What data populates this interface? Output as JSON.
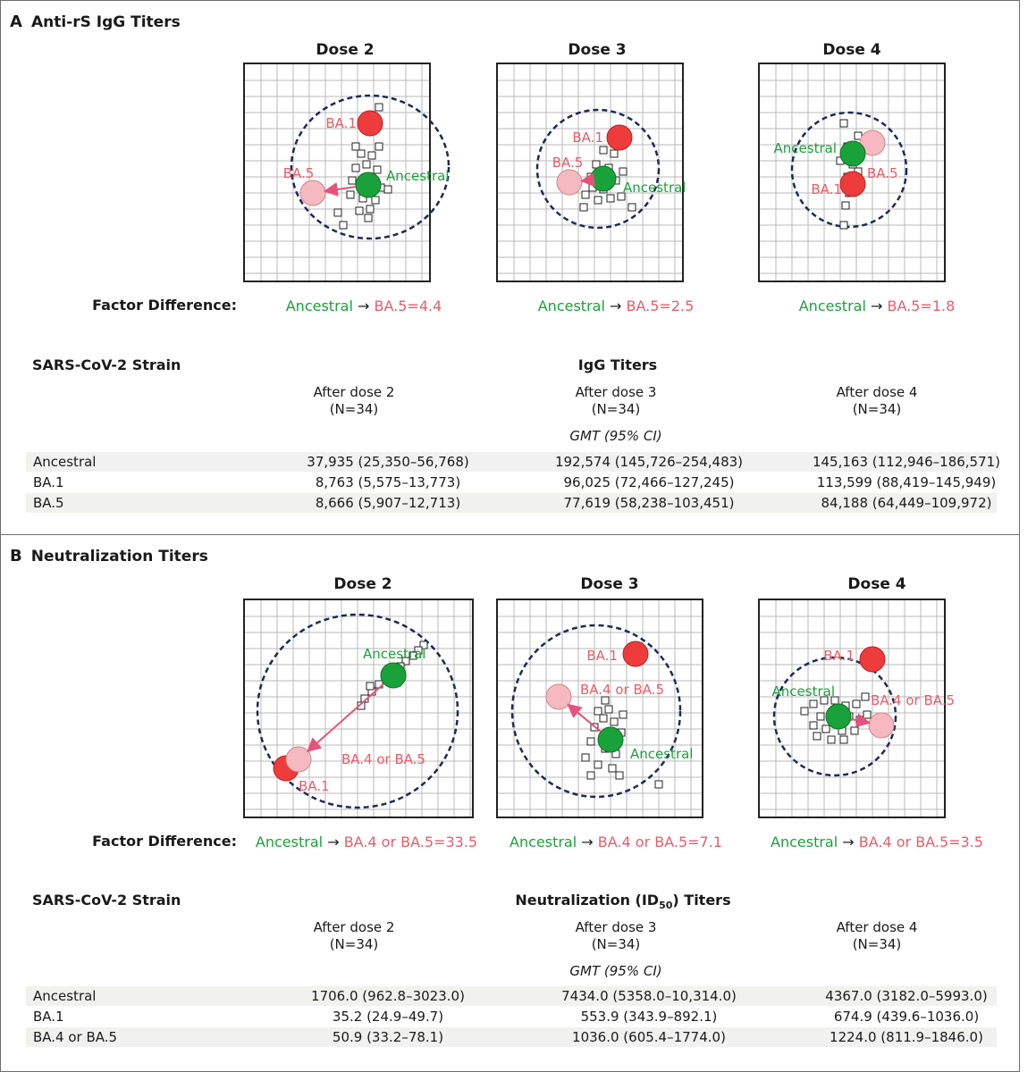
{
  "colors": {
    "ancestral": "#1aa23a",
    "ba1": "#ee3b3b",
    "ba5": "#f7b9c1",
    "arrow": "#e8527a",
    "circle": "#1c2b55"
  },
  "panels": {
    "a": {
      "letter": "A",
      "title": "Anti-rS IgG Titers",
      "doses": [
        "Dose 2",
        "Dose 3",
        "Dose 4"
      ],
      "maps": [
        {
          "labels": {
            "ba1": "BA.1",
            "ba5": "BA.5",
            "ancestral": "Ancestral"
          }
        },
        {
          "labels": {
            "ba1": "BA.1",
            "ba5": "BA.5",
            "ancestral": "Ancestral"
          }
        },
        {
          "labels": {
            "ba1": "BA.1",
            "ba5": "BA.5",
            "ancestral": "Ancestral"
          }
        }
      ],
      "factor_label": "Factor Difference:",
      "factors": [
        {
          "from": "Ancestral",
          "arrow": "→",
          "to": "BA.5=4.4"
        },
        {
          "from": "Ancestral",
          "arrow": "→",
          "to": "BA.5=2.5"
        },
        {
          "from": "Ancestral",
          "arrow": "→",
          "to": "BA.5=1.8"
        }
      ],
      "table": {
        "strain_header": "SARS-CoV-2 Strain",
        "titer_header": "IgG Titers",
        "columns": [
          {
            "label": "After dose 2",
            "n": "(N=34)"
          },
          {
            "label": "After dose 3",
            "n": "(N=34)"
          },
          {
            "label": "After dose 4",
            "n": "(N=34)"
          }
        ],
        "unit": "GMT (95% CI)",
        "rows": [
          {
            "strain": "Ancestral",
            "values": [
              "37,935 (25,350–56,768)",
              "192,574 (145,726–254,483)",
              "145,163 (112,946–186,571)"
            ]
          },
          {
            "strain": "BA.1",
            "values": [
              "8,763 (5,575–13,773)",
              "96,025 (72,466–127,245)",
              "113,599 (88,419–145,949)"
            ]
          },
          {
            "strain": "BA.5",
            "values": [
              "8,666 (5,907–12,713)",
              "77,619 (58,238–103,451)",
              "84,188 (64,449–109,972)"
            ]
          }
        ]
      }
    },
    "b": {
      "letter": "B",
      "title": "Neutralization Titers",
      "doses": [
        "Dose 2",
        "Dose 3",
        "Dose 4"
      ],
      "maps": [
        {
          "labels": {
            "ba1": "BA.1",
            "ba5": "BA.4 or BA.5",
            "ancestral": "Ancestral"
          }
        },
        {
          "labels": {
            "ba1": "BA.1",
            "ba5": "BA.4 or BA.5",
            "ancestral": "Ancestral"
          }
        },
        {
          "labels": {
            "ba1": "BA.1",
            "ba5": "BA.4 or BA.5",
            "ancestral": "Ancestral"
          }
        }
      ],
      "factor_label": "Factor Difference:",
      "factors": [
        {
          "from": "Ancestral",
          "arrow": "→",
          "to": "BA.4 or BA.5=33.5"
        },
        {
          "from": "Ancestral",
          "arrow": "→",
          "to": "BA.4 or BA.5=7.1"
        },
        {
          "from": "Ancestral",
          "arrow": "→",
          "to": "BA.4 or BA.5=3.5"
        }
      ],
      "table": {
        "strain_header": "SARS-CoV-2 Strain",
        "titer_header_main": "Neutralization (ID",
        "titer_header_sub": "50",
        "titer_header_end": ") Titers",
        "columns": [
          {
            "label": "After dose 2",
            "n": "(N=34)"
          },
          {
            "label": "After dose 3",
            "n": "(N=34)"
          },
          {
            "label": "After dose 4",
            "n": "(N=34)"
          }
        ],
        "unit": "GMT (95% CI)",
        "rows": [
          {
            "strain": "Ancestral",
            "values": [
              "1706.0 (962.8–3023.0)",
              "7434.0 (5358.0–10,314.0)",
              "4367.0 (3182.0–5993.0)"
            ]
          },
          {
            "strain": "BA.1",
            "values": [
              "35.2 (24.9–49.7)",
              "553.9 (343.9–892.1)",
              "674.9 (439.6–1036.0)"
            ]
          },
          {
            "strain": "BA.4 or BA.5",
            "values": [
              "50.9 (33.2–78.1)",
              "1036.0 (605.4–1774.0)",
              "1224.0 (811.9–1846.0)"
            ]
          }
        ]
      }
    }
  },
  "chart_data": [
    {
      "type": "scatter",
      "title": "Anti-rS IgG Titers — Dose 2",
      "series": [
        {
          "name": "Ancestral"
        },
        {
          "name": "BA.1"
        },
        {
          "name": "BA.5"
        }
      ],
      "xlabel": "",
      "ylabel": ""
    },
    {
      "type": "scatter",
      "title": "Anti-rS IgG Titers — Dose 3",
      "series": [
        {
          "name": "Ancestral"
        },
        {
          "name": "BA.1"
        },
        {
          "name": "BA.5"
        }
      ],
      "xlabel": "",
      "ylabel": ""
    },
    {
      "type": "scatter",
      "title": "Anti-rS IgG Titers — Dose 4",
      "series": [
        {
          "name": "Ancestral"
        },
        {
          "name": "BA.1"
        },
        {
          "name": "BA.5"
        }
      ],
      "xlabel": "",
      "ylabel": ""
    },
    {
      "type": "scatter",
      "title": "Neutralization Titers — Dose 2",
      "series": [
        {
          "name": "Ancestral"
        },
        {
          "name": "BA.1"
        },
        {
          "name": "BA.4 or BA.5"
        }
      ],
      "xlabel": "",
      "ylabel": ""
    },
    {
      "type": "scatter",
      "title": "Neutralization Titers — Dose 3",
      "series": [
        {
          "name": "Ancestral"
        },
        {
          "name": "BA.1"
        },
        {
          "name": "BA.4 or BA.5"
        }
      ],
      "xlabel": "",
      "ylabel": ""
    },
    {
      "type": "scatter",
      "title": "Neutralization Titers — Dose 4",
      "series": [
        {
          "name": "Ancestral"
        },
        {
          "name": "BA.1"
        },
        {
          "name": "BA.4 or BA.5"
        }
      ],
      "xlabel": "",
      "ylabel": ""
    }
  ]
}
